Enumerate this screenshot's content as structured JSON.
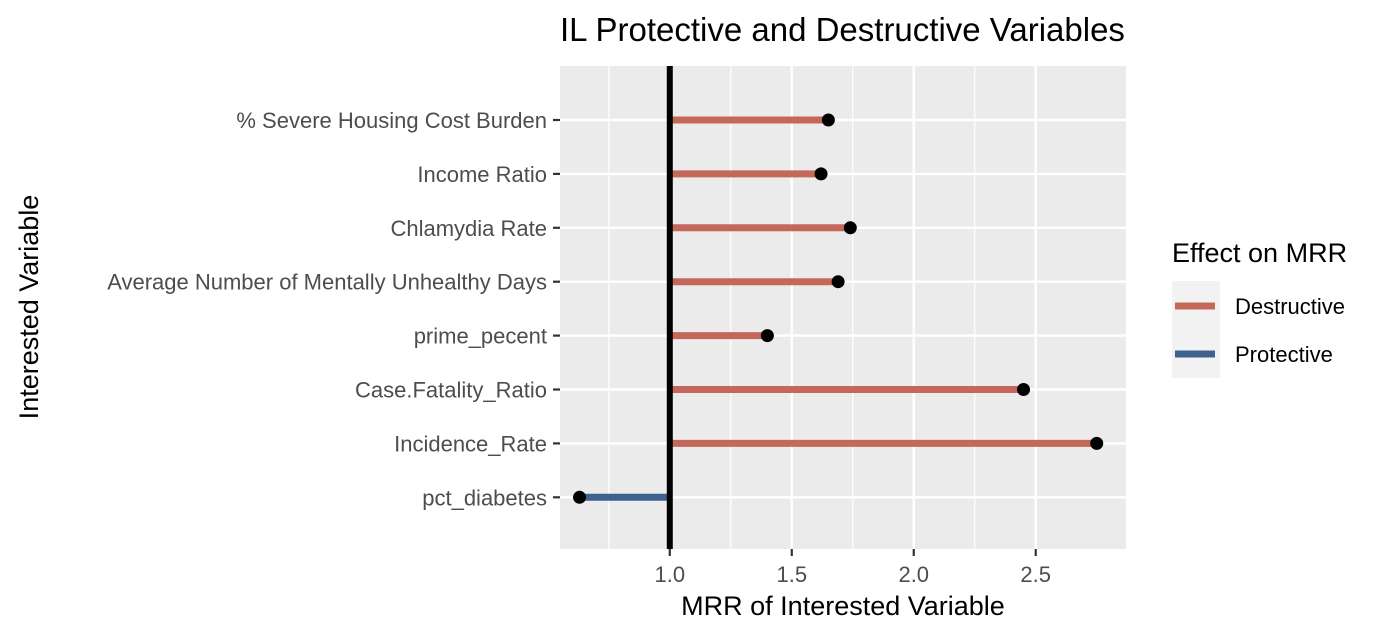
{
  "chart_data": {
    "type": "lollipop",
    "title": "IL Protective and Destructive Variables",
    "xlabel": "MRR of Interested Variable",
    "ylabel": "Interested Variable",
    "xlim": [
      0.55,
      2.87
    ],
    "x_ticks": [
      1.0,
      1.5,
      2.0,
      2.5
    ],
    "x_tick_labels": [
      "1.0",
      "1.5",
      "2.0",
      "2.5"
    ],
    "reference_line": 1.0,
    "grid": true,
    "legend": {
      "title": "Effect on MRR",
      "position": "right",
      "entries": [
        {
          "label": "Destructive",
          "color": "#c4695a"
        },
        {
          "label": "Protective",
          "color": "#3f618d"
        }
      ]
    },
    "categories": [
      "% Severe Housing Cost Burden",
      "Income Ratio",
      "Chlamydia Rate",
      "Average Number of Mentally Unhealthy Days",
      "prime_pecent",
      "Case.Fatality_Ratio",
      "Incidence_Rate",
      "pct_diabetes"
    ],
    "values": [
      1.65,
      1.62,
      1.74,
      1.69,
      1.4,
      2.45,
      2.75,
      0.63
    ],
    "effects": [
      "Destructive",
      "Destructive",
      "Destructive",
      "Destructive",
      "Destructive",
      "Destructive",
      "Destructive",
      "Protective"
    ]
  }
}
